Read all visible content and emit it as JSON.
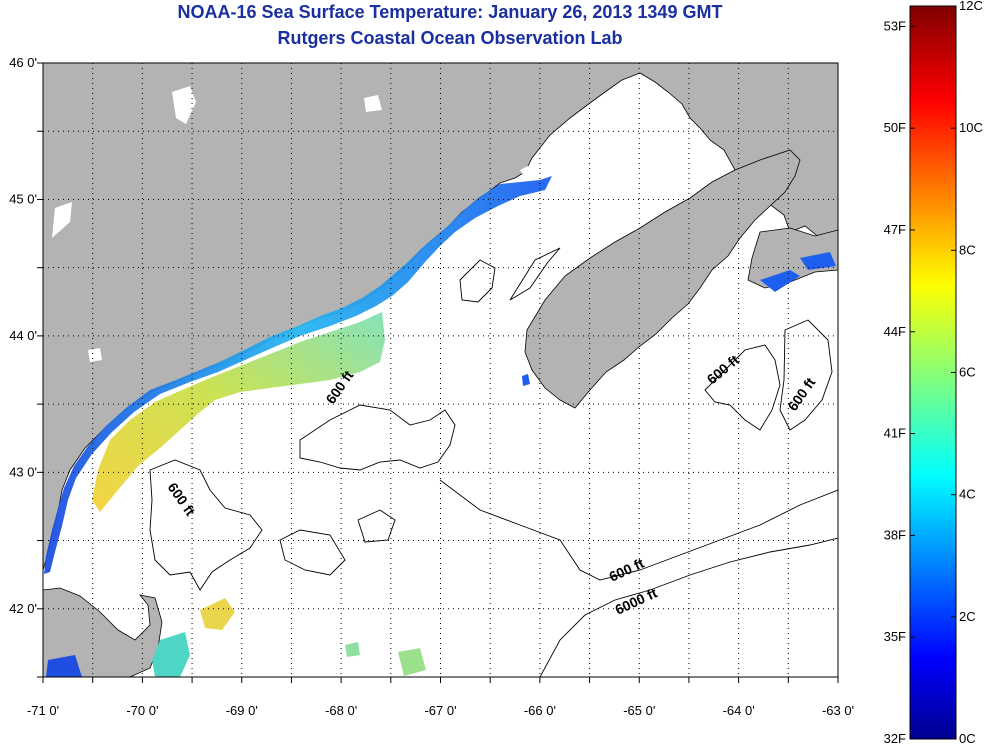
{
  "header": {
    "title": "NOAA-16 Sea Surface Temperature:  January 26, 2013 1349 GMT",
    "subtitle": "Rutgers Coastal Ocean Observation Lab"
  },
  "map": {
    "lon_range": [
      -71.0,
      -63.0
    ],
    "lat_range": [
      41.5,
      46.0
    ],
    "lon_ticks": [
      {
        "value": -71,
        "label": "-71 0'"
      },
      {
        "value": -70,
        "label": "-70 0'"
      },
      {
        "value": -69,
        "label": "-69 0'"
      },
      {
        "value": -68,
        "label": "-68 0'"
      },
      {
        "value": -67,
        "label": "-67 0'"
      },
      {
        "value": -66,
        "label": "-66 0'"
      },
      {
        "value": -65,
        "label": "-65 0'"
      },
      {
        "value": -64,
        "label": "-64 0'"
      },
      {
        "value": -63,
        "label": "-63 0'"
      }
    ],
    "lat_ticks": [
      {
        "value": 46,
        "label": "46 0'"
      },
      {
        "value": 45,
        "label": "45 0'"
      },
      {
        "value": 44,
        "label": "44 0'"
      },
      {
        "value": 43,
        "label": "43 0'"
      },
      {
        "value": 42,
        "label": "42 0'"
      }
    ],
    "contour_labels": [
      "600 ft",
      "600 ft",
      "600 ft",
      "600 ft",
      "600 ft",
      "6000 ft"
    ],
    "colors": {
      "land": "#b3b3b3",
      "ocean": "#ffffff",
      "grid": "#000000",
      "coast": "#000000"
    }
  },
  "colorbar": {
    "min_c": 0,
    "max_c": 12,
    "celsius_labels": [
      "12C",
      "10C",
      "8C",
      "6C",
      "4C",
      "2C",
      "0C"
    ],
    "fahrenheit_labels": [
      "53F",
      "50F",
      "47F",
      "44F",
      "41F",
      "38F",
      "35F",
      "32F"
    ],
    "colormap": "jet"
  }
}
